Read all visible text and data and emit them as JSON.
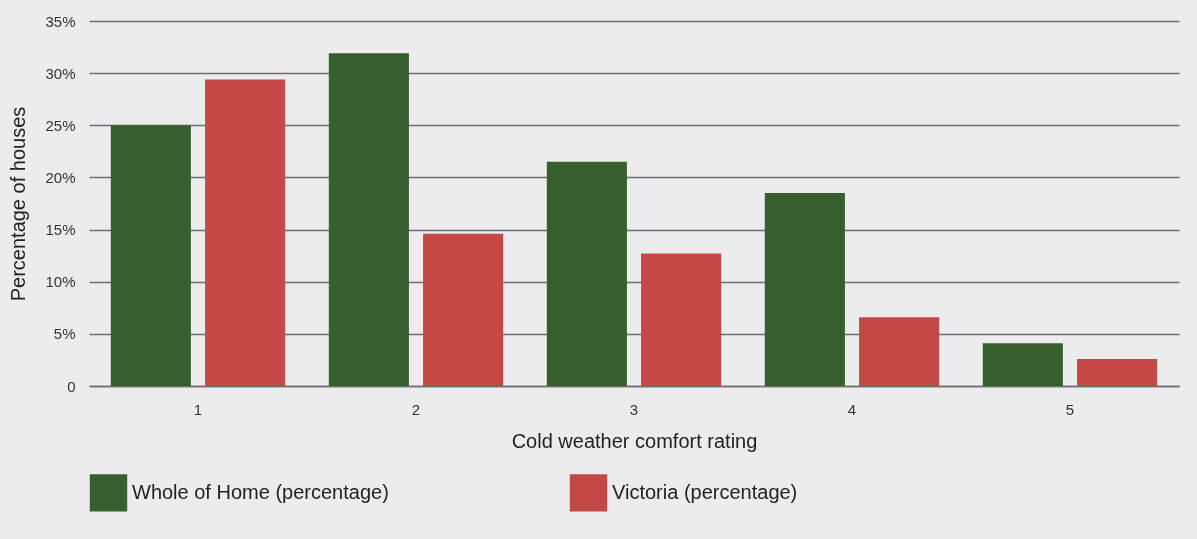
{
  "chart_data": {
    "type": "bar",
    "xlabel": "Cold weather comfort rating",
    "ylabel": "Percentage of houses",
    "categories": [
      "1",
      "2",
      "3",
      "4",
      "5"
    ],
    "series": [
      {
        "name": "Whole of Home (percentage)",
        "color": "#375f2d",
        "values": [
          25.0,
          31.9,
          21.5,
          18.5,
          4.1
        ]
      },
      {
        "name": "Victoria (percentage)",
        "color": "#c44845",
        "values": [
          29.4,
          14.6,
          12.7,
          6.6,
          2.6
        ]
      }
    ],
    "ylim": [
      0,
      35
    ],
    "yticks": [
      {
        "value": 0,
        "label": "0"
      },
      {
        "value": 5,
        "label": "5%"
      },
      {
        "value": 10,
        "label": "10%"
      },
      {
        "value": 15,
        "label": "15%"
      },
      {
        "value": 20,
        "label": "20%"
      },
      {
        "value": 25,
        "label": "25%"
      },
      {
        "value": 30,
        "label": "30%"
      },
      {
        "value": 35,
        "label": "35%"
      }
    ],
    "grid": "y",
    "legend": "bottom"
  }
}
